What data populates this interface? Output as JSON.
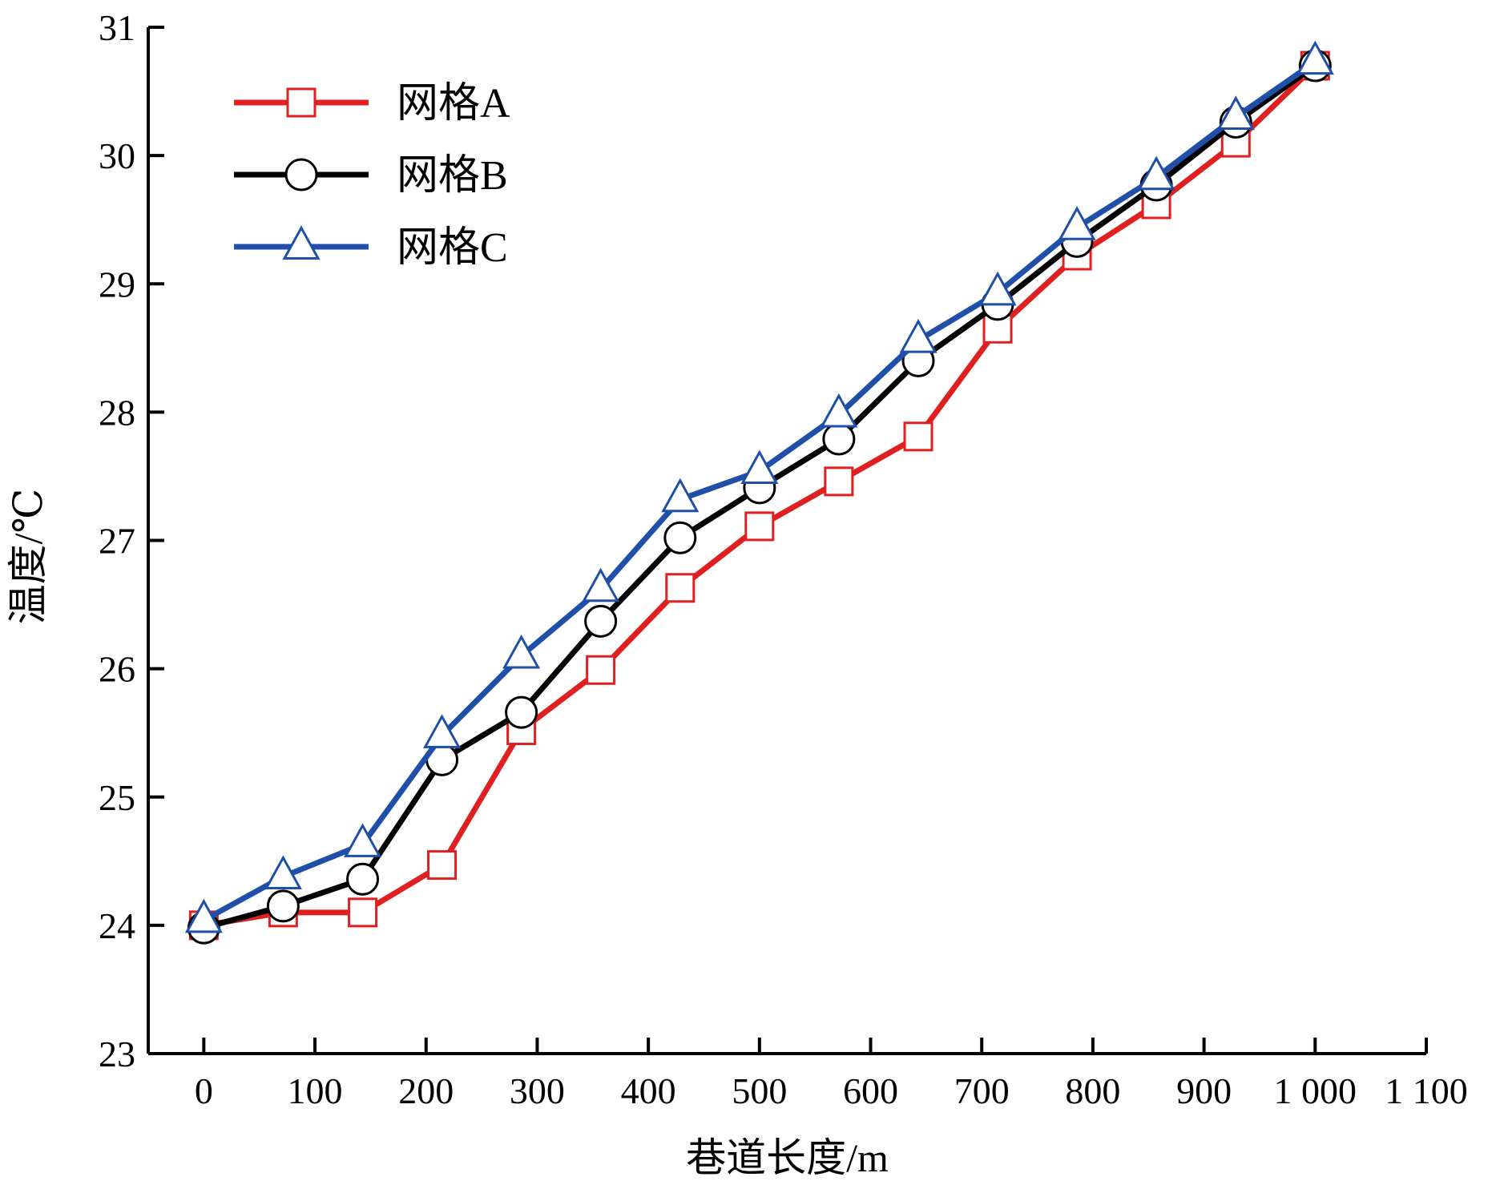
{
  "chart_data": {
    "type": "line",
    "xlabel": "巷道长度/m",
    "ylabel": "温度/℃",
    "xlim": [
      -50,
      1100
    ],
    "ylim": [
      23,
      31
    ],
    "x_ticks": [
      0,
      100,
      200,
      300,
      400,
      500,
      600,
      700,
      800,
      900,
      1000,
      1100
    ],
    "x_tick_labels": [
      "0",
      "100",
      "200",
      "300",
      "400",
      "500",
      "600",
      "700",
      "800",
      "900",
      "1 000",
      "1 100"
    ],
    "y_ticks": [
      23,
      24,
      25,
      26,
      27,
      28,
      29,
      30,
      31
    ],
    "y_tick_labels": [
      "23",
      "24",
      "25",
      "26",
      "27",
      "28",
      "29",
      "30",
      "31"
    ],
    "grid": false,
    "legend_position": "top-left",
    "x": [
      0,
      71.4,
      142.9,
      214.3,
      285.7,
      357.1,
      428.6,
      500,
      571.4,
      642.9,
      714.3,
      785.7,
      857.1,
      928.6,
      1000
    ],
    "series": [
      {
        "name": "网格A",
        "color": "#e02020",
        "marker": "square",
        "values": [
          24.0,
          24.1,
          24.1,
          24.47,
          25.52,
          25.99,
          26.63,
          27.11,
          27.46,
          27.81,
          28.65,
          29.22,
          29.62,
          30.1,
          30.7
        ]
      },
      {
        "name": "网格B",
        "color": "#000000",
        "marker": "circle",
        "values": [
          23.98,
          24.15,
          24.36,
          25.29,
          25.66,
          26.37,
          27.02,
          27.41,
          27.79,
          28.4,
          28.84,
          29.33,
          29.77,
          30.26,
          30.7
        ]
      },
      {
        "name": "网格C",
        "color": "#1f4fa8",
        "marker": "triangle",
        "values": [
          24.04,
          24.38,
          24.63,
          25.48,
          26.1,
          26.62,
          27.32,
          27.54,
          27.98,
          28.56,
          28.93,
          29.44,
          29.83,
          30.3,
          30.73
        ]
      }
    ]
  }
}
